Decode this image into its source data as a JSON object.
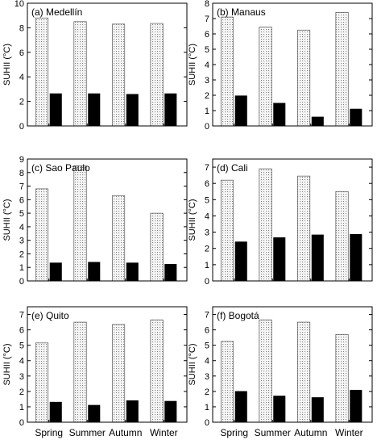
{
  "figure": {
    "ylabel": "SUHII (°C)"
  },
  "chart_data": [
    {
      "type": "bar",
      "title": "(a) Medellín",
      "ylabel": "SUHII (°C)",
      "ylim": [
        0,
        10
      ],
      "yticks": [
        0,
        2,
        4,
        6,
        8,
        10
      ],
      "categories": [
        "Spring",
        "Summer",
        "Autumn",
        "Winter"
      ],
      "series": [
        {
          "values": [
            8.8,
            8.5,
            8.3,
            8.35
          ],
          "pattern": "dotted-grid"
        },
        {
          "values": [
            2.65,
            2.65,
            2.6,
            2.65
          ],
          "pattern": "solid-black"
        }
      ]
    },
    {
      "type": "bar",
      "title": "(b) Manaus",
      "ylabel": "SUHII (°C)",
      "ylim": [
        0,
        8
      ],
      "yticks": [
        0,
        1,
        2,
        3,
        4,
        5,
        6,
        7,
        8
      ],
      "categories": [
        "Spring",
        "Summer",
        "Autumn",
        "Winter"
      ],
      "series": [
        {
          "values": [
            7.1,
            6.45,
            6.25,
            7.4
          ],
          "pattern": "dotted-grid"
        },
        {
          "values": [
            1.98,
            1.5,
            0.6,
            1.12
          ],
          "pattern": "solid-black"
        }
      ]
    },
    {
      "type": "bar",
      "title": "(c) Sao Paulo",
      "ylabel": "SUHII (°C)",
      "ylim": [
        0,
        9
      ],
      "yticks": [
        0,
        1,
        2,
        3,
        4,
        5,
        6,
        7,
        8,
        9
      ],
      "categories": [
        "Spring",
        "Summer",
        "Autumn",
        "Winter"
      ],
      "series": [
        {
          "values": [
            6.8,
            8.5,
            6.3,
            5.0
          ],
          "pattern": "dotted-grid"
        },
        {
          "values": [
            1.35,
            1.4,
            1.35,
            1.25
          ],
          "pattern": "solid-black"
        }
      ]
    },
    {
      "type": "bar",
      "title": "(d) Cali",
      "ylabel": "SUHII (°C)",
      "ylim": [
        0,
        7.5
      ],
      "yticks": [
        0,
        1,
        2,
        3,
        4,
        5,
        6,
        7
      ],
      "categories": [
        "Spring",
        "Summer",
        "Autumn",
        "Winter"
      ],
      "series": [
        {
          "values": [
            6.2,
            6.9,
            6.45,
            5.5
          ],
          "pattern": "dotted-grid"
        },
        {
          "values": [
            2.42,
            2.68,
            2.85,
            2.88
          ],
          "pattern": "solid-black"
        }
      ]
    },
    {
      "type": "bar",
      "title": "(e) Quito",
      "ylabel": "SUHII (°C)",
      "ylim": [
        0,
        7.5
      ],
      "yticks": [
        0,
        1,
        2,
        3,
        4,
        5,
        6,
        7
      ],
      "categories": [
        "Spring",
        "Summer",
        "Autumn",
        "Winter"
      ],
      "series": [
        {
          "values": [
            5.15,
            6.5,
            6.35,
            6.65
          ],
          "pattern": "dotted-grid"
        },
        {
          "values": [
            1.32,
            1.12,
            1.42,
            1.38
          ],
          "pattern": "solid-black"
        }
      ]
    },
    {
      "type": "bar",
      "title": "(f) Bogotá",
      "ylabel": "SUHII (°C)",
      "ylim": [
        0,
        7.5
      ],
      "yticks": [
        0,
        1,
        2,
        3,
        4,
        5,
        6,
        7
      ],
      "categories": [
        "Spring",
        "Summer",
        "Autumn",
        "Winter"
      ],
      "series": [
        {
          "values": [
            5.25,
            6.65,
            6.5,
            5.7
          ],
          "pattern": "dotted-grid"
        },
        {
          "values": [
            2.02,
            1.72,
            1.62,
            2.1
          ],
          "pattern": "solid-black"
        }
      ]
    }
  ]
}
